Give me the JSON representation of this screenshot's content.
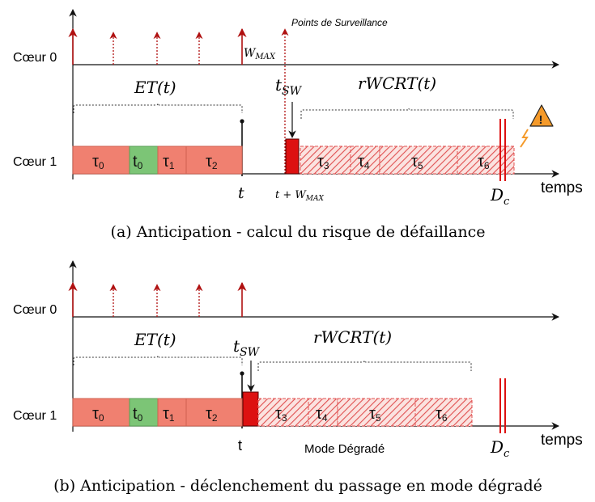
{
  "colors": {
    "executed_task": "#f08070",
    "executed_border": "#c05040",
    "switch_task": "#dd1111",
    "hatch": "#e05050",
    "green_task": "#7cc576",
    "arrow": "#b01010",
    "axis": "#111111"
  },
  "panel_a": {
    "monitoring_label": "Points de Surveillance",
    "core0_label": "Cœur 0",
    "core1_label": "Cœur 1",
    "wmax_label": "W",
    "wmax_sub": "MAX",
    "et_label": "ET(t)",
    "tsw_label": "t",
    "tsw_sub": "SW",
    "rwcrt_label": "rWCRT(t)",
    "t_label": "t",
    "t_plus_w_label": "t + W",
    "t_plus_w_sub": "MAX",
    "dc_label": "D",
    "dc_sub": "c",
    "time_label": "temps",
    "warning_icon": "warning-icon",
    "warning_glyph": "!",
    "caption": "(a) Anticipation - calcul du risque de défaillance",
    "tasks": [
      {
        "main": "τ",
        "sub": "0"
      },
      {
        "main": "t",
        "sub": "0"
      },
      {
        "main": "τ",
        "sub": "1"
      },
      {
        "main": "τ",
        "sub": "2"
      },
      {
        "main": "τ",
        "sub": "3"
      },
      {
        "main": "τ",
        "sub": "4"
      },
      {
        "main": "τ",
        "sub": "5"
      },
      {
        "main": "τ",
        "sub": "6"
      }
    ]
  },
  "panel_b": {
    "core0_label": "Cœur 0",
    "core1_label": "Cœur 1",
    "et_label": "ET(t)",
    "tsw_label": "t",
    "tsw_sub": "SW",
    "rwcrt_label": "rWCRT(t)",
    "t_label": "t",
    "mode_label": "Mode Dégradé",
    "dc_label": "D",
    "dc_sub": "c",
    "time_label": "temps",
    "caption": "(b) Anticipation - déclenchement du passage en mode dégradé",
    "tasks": [
      {
        "main": "τ",
        "sub": "0"
      },
      {
        "main": "t",
        "sub": "0"
      },
      {
        "main": "τ",
        "sub": "1"
      },
      {
        "main": "τ",
        "sub": "2"
      },
      {
        "main": "τ",
        "sub": "3"
      },
      {
        "main": "τ",
        "sub": "4"
      },
      {
        "main": "τ",
        "sub": "5"
      },
      {
        "main": "τ",
        "sub": "6"
      }
    ]
  }
}
